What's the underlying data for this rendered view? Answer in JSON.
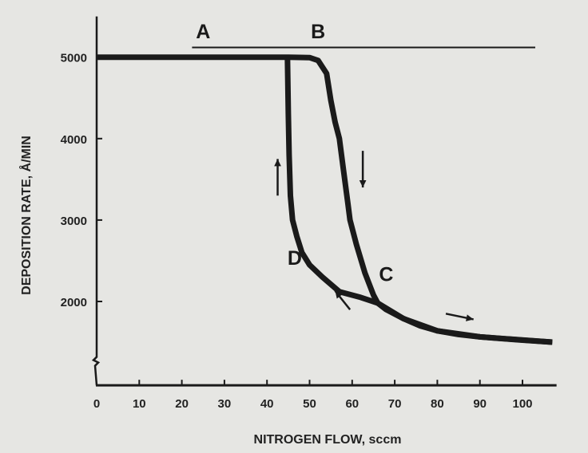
{
  "chart_data": {
    "type": "line",
    "title": "",
    "xlabel": "NITROGEN FLOW, sccm",
    "ylabel": "DEPOSITION RATE, Å/MIN",
    "xlim": [
      0,
      108
    ],
    "ylim": [
      970,
      5500
    ],
    "x_ticks": [
      0,
      10,
      20,
      30,
      40,
      50,
      60,
      70,
      80,
      90,
      100
    ],
    "x_tick_labels": [
      "0",
      "10",
      "20",
      "30",
      "40",
      "50",
      "60",
      "70",
      "80",
      "90",
      "100"
    ],
    "y_ticks": [
      2000,
      3000,
      4000,
      5000
    ],
    "y_tick_labels": [
      "2000",
      "3000",
      "4000",
      "5000"
    ],
    "y_axis_break": 1260,
    "grid": false,
    "line_color": "#1a1a1a",
    "series": [
      {
        "direction": "increasing flow",
        "points": [
          [
            0,
            5000
          ],
          [
            45,
            5000
          ],
          [
            50,
            4995
          ],
          [
            52,
            4960
          ],
          [
            54,
            4800
          ],
          [
            55,
            4470
          ],
          [
            56,
            4200
          ],
          [
            57,
            4000
          ],
          [
            58,
            3600
          ],
          [
            59,
            3200
          ],
          [
            59.5,
            3000
          ],
          [
            61,
            2700
          ],
          [
            63,
            2350
          ],
          [
            65,
            2080
          ],
          [
            66,
            1980
          ],
          [
            68,
            1900
          ],
          [
            72,
            1790
          ],
          [
            76,
            1700
          ],
          [
            80,
            1640
          ],
          [
            85,
            1595
          ],
          [
            90,
            1565
          ],
          [
            95,
            1545
          ],
          [
            100,
            1525
          ],
          [
            107,
            1500
          ]
        ]
      },
      {
        "direction": "decreasing flow",
        "points": [
          [
            107,
            1500
          ],
          [
            90,
            1565
          ],
          [
            80,
            1640
          ],
          [
            72,
            1790
          ],
          [
            66,
            1980
          ],
          [
            62,
            2050
          ],
          [
            57,
            2120
          ],
          [
            53,
            2300
          ],
          [
            50,
            2450
          ],
          [
            48.2,
            2600
          ],
          [
            47,
            2800
          ],
          [
            46,
            3000
          ],
          [
            45.5,
            3300
          ],
          [
            45.2,
            3800
          ],
          [
            45,
            4300
          ],
          [
            44.8,
            5000
          ]
        ]
      }
    ],
    "reference_line": {
      "y": 5120,
      "x": [
        22.4,
        103
      ]
    },
    "annotations": [
      {
        "text": "A",
        "x": 25,
        "y": 5230
      },
      {
        "text": "B",
        "x": 52,
        "y": 5230
      },
      {
        "text": "C",
        "x": 68,
        "y": 2250
      },
      {
        "text": "D",
        "x": 46.5,
        "y": 2450
      }
    ],
    "arrows": [
      {
        "direction": "up",
        "from": [
          42.5,
          3300
        ],
        "to": [
          42.5,
          3750
        ]
      },
      {
        "direction": "down",
        "from": [
          62.5,
          3850
        ],
        "to": [
          62.5,
          3400
        ]
      },
      {
        "direction": "up-left",
        "from": [
          59.5,
          1900
        ],
        "to": [
          56,
          2130
        ]
      },
      {
        "direction": "right",
        "from": [
          82,
          1850
        ],
        "to": [
          88.5,
          1780
        ]
      }
    ]
  }
}
